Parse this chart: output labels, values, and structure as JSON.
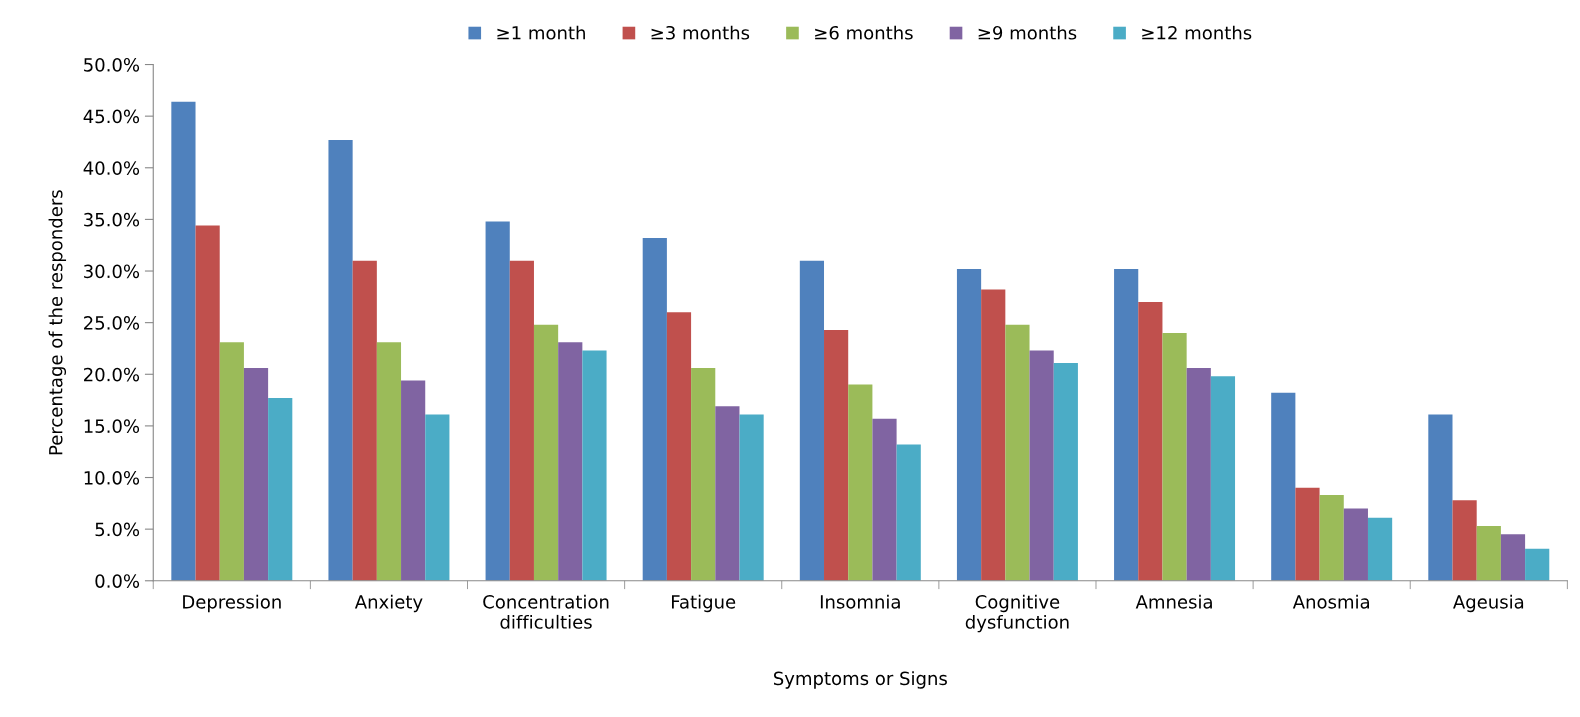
{
  "chart_data": {
    "type": "bar",
    "xlabel": "Symptoms or Signs",
    "ylabel": "Percentage of the responders",
    "categories": [
      "Depression",
      "Anxiety",
      "Concentration\ndifficulties",
      "Fatigue",
      "Insomnia",
      "Cognitive\ndysfunction",
      "Amnesia",
      "Anosmia",
      "Ageusia"
    ],
    "series": [
      {
        "name": "≥1 month",
        "color": "#4f81bd",
        "values": [
          46.4,
          42.7,
          34.8,
          33.2,
          31.0,
          30.2,
          30.2,
          18.2,
          16.1
        ]
      },
      {
        "name": "≥3 months",
        "color": "#c0504d",
        "values": [
          34.4,
          31.0,
          31.0,
          26.0,
          24.3,
          28.2,
          27.0,
          9.0,
          7.8
        ]
      },
      {
        "name": "≥6 months",
        "color": "#9bbb59",
        "values": [
          23.1,
          23.1,
          24.8,
          20.6,
          19.0,
          24.8,
          24.0,
          8.3,
          5.3
        ]
      },
      {
        "name": "≥9 months",
        "color": "#8064a2",
        "values": [
          20.6,
          19.4,
          23.1,
          16.9,
          15.7,
          22.3,
          20.6,
          7.0,
          4.5
        ]
      },
      {
        "name": "≥12 months",
        "color": "#4bacc6",
        "values": [
          17.7,
          16.1,
          22.3,
          16.1,
          13.2,
          21.1,
          19.8,
          6.1,
          3.1
        ]
      }
    ],
    "ylim": [
      0,
      50
    ],
    "yticks": [
      {
        "value": 0,
        "label": "0.0%"
      },
      {
        "value": 5,
        "label": "5.0%"
      },
      {
        "value": 10,
        "label": "10.0%"
      },
      {
        "value": 15,
        "label": "15.0%"
      },
      {
        "value": 20,
        "label": "20.0%"
      },
      {
        "value": 25,
        "label": "25.0%"
      },
      {
        "value": 30,
        "label": "30.0%"
      },
      {
        "value": 35,
        "label": "35.0%"
      },
      {
        "value": 40,
        "label": "40.0%"
      },
      {
        "value": 45,
        "label": "45.0%"
      },
      {
        "value": 50,
        "label": "50.0%"
      }
    ],
    "grid": false,
    "legend": "top"
  }
}
